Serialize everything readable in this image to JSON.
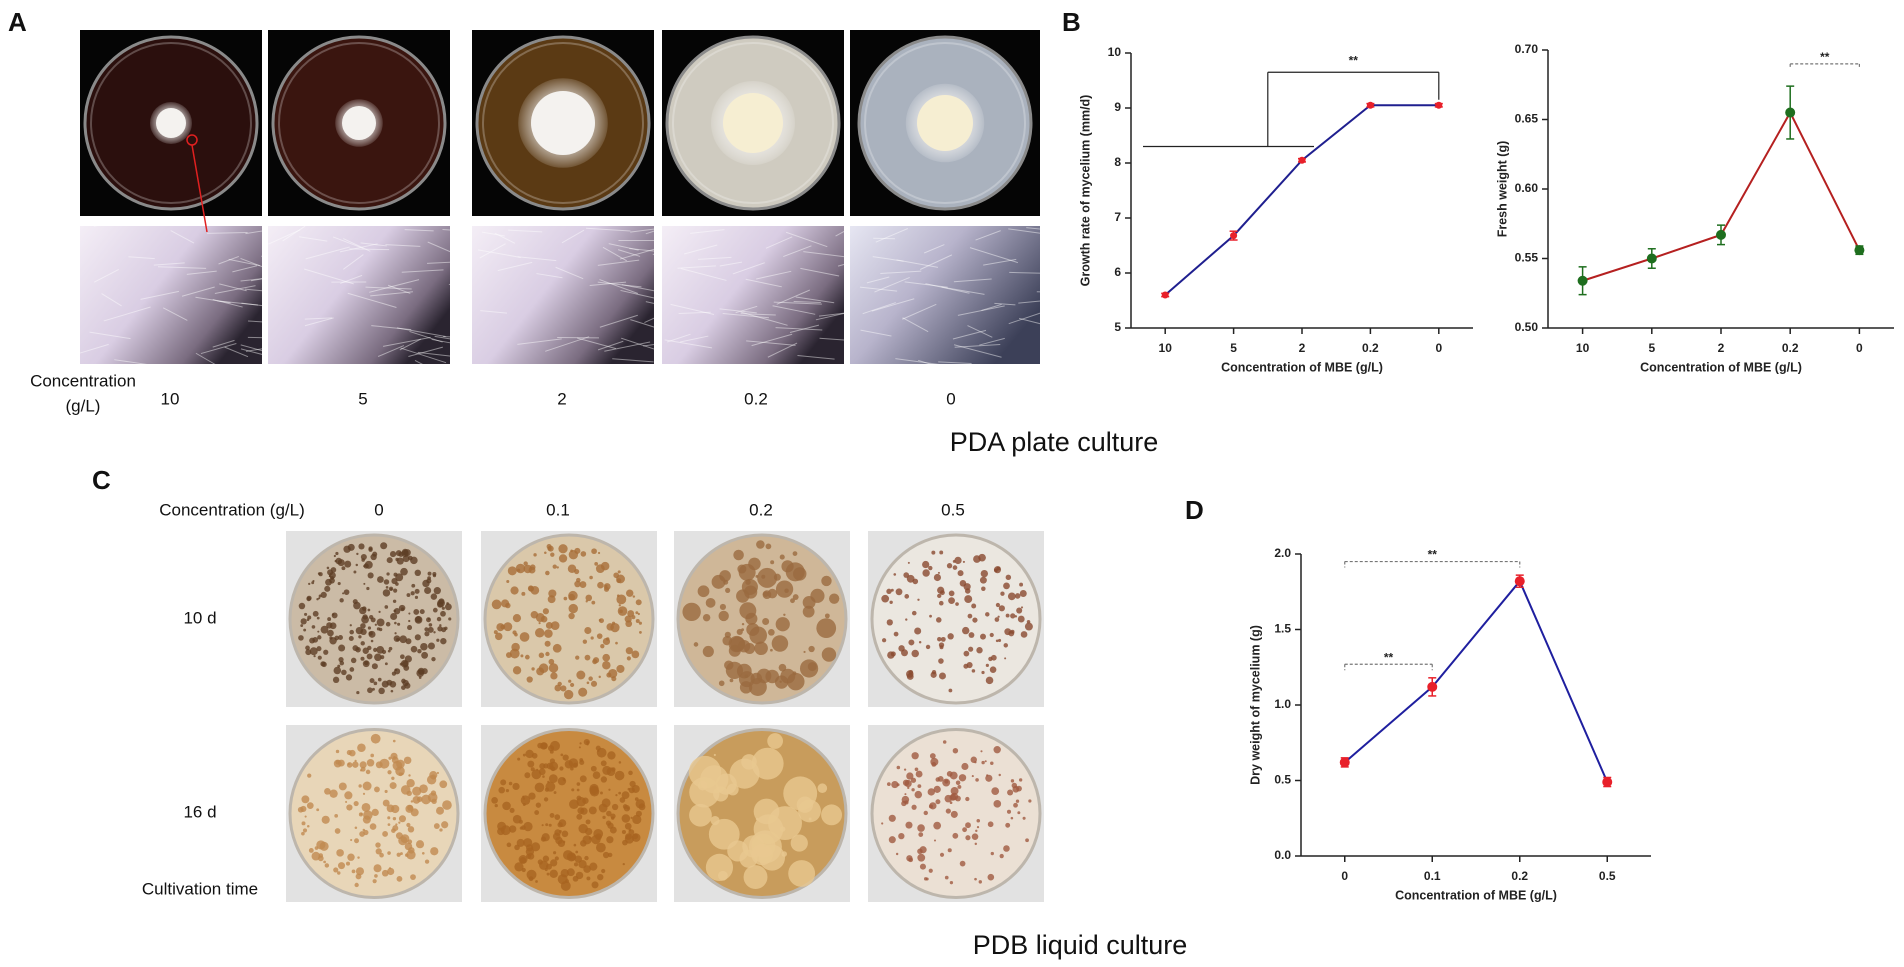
{
  "panel_labels": [
    "A",
    "B",
    "C",
    "D"
  ],
  "panel_a": {
    "concentration_label": [
      "Concentration",
      "(g/L)"
    ],
    "concentrations": [
      "10",
      "5",
      "2",
      "0.2",
      "0"
    ],
    "caption": "PDA plate culture"
  },
  "panel_c": {
    "concentration_label": "Concentration (g/L)",
    "concentrations": [
      "0",
      "0.1",
      "0.2",
      "0.5"
    ],
    "times": [
      "10 d",
      "16 d"
    ],
    "time_label": "Cultivation time",
    "caption": "PDB liquid culture"
  },
  "chart_data": [
    {
      "type": "line",
      "x_label": "Concentration of MBE (g/L)",
      "y_label": "Growth rate of mycelium (mm/d)",
      "categories": [
        "10",
        "5",
        "2",
        "0.2",
        "0"
      ],
      "values": [
        5.6,
        6.68,
        8.05,
        9.05,
        9.05
      ],
      "errors": [
        0.03,
        0.08,
        0.03,
        0.03,
        0.03
      ],
      "color": "#1f1f8f",
      "marker_color": "#e8202a",
      "ylim": [
        5,
        10
      ],
      "yticks": [
        5,
        6,
        7,
        8,
        9,
        10
      ],
      "annotations": [
        "**"
      ]
    },
    {
      "type": "line",
      "x_label": "Concentration of MBE (g/L)",
      "y_label": "Fresh weight (g)",
      "categories": [
        "10",
        "5",
        "2",
        "0.2",
        "0"
      ],
      "values": [
        0.534,
        0.55,
        0.567,
        0.655,
        0.556
      ],
      "errors": [
        0.01,
        0.007,
        0.007,
        0.019,
        0.003
      ],
      "color": "#b52020",
      "marker_color": "#1e6e1e",
      "ylim": [
        0.5,
        0.7
      ],
      "yticks": [
        {
          "value": 0.5,
          "label": "0.50"
        },
        {
          "value": 0.55,
          "label": "0.55"
        },
        {
          "value": 0.6,
          "label": "0.60"
        },
        {
          "value": 0.65,
          "label": "0.65"
        },
        {
          "value": 0.7,
          "label": "0.70"
        }
      ],
      "annotations": [
        "**"
      ]
    },
    {
      "type": "line",
      "x_label": "Concentration of MBE (g/L)",
      "y_label": "Dry weight of mycelium (g)",
      "categories": [
        "0",
        "0.1",
        "0.2",
        "0.5"
      ],
      "values": [
        0.62,
        1.12,
        1.82,
        0.49
      ],
      "errors": [
        0.03,
        0.06,
        0.04,
        0.03
      ],
      "color": "#1f1f9f",
      "marker_color": "#e8202a",
      "ylim": [
        0,
        2
      ],
      "yticks": [
        {
          "value": 0,
          "label": "0.0"
        },
        {
          "value": 0.5,
          "label": "0.5"
        },
        {
          "value": 1,
          "label": "1.0"
        },
        {
          "value": 1.5,
          "label": "1.5"
        },
        {
          "value": 2,
          "label": "2.0"
        }
      ],
      "annotations": [
        "**",
        "**"
      ]
    }
  ]
}
